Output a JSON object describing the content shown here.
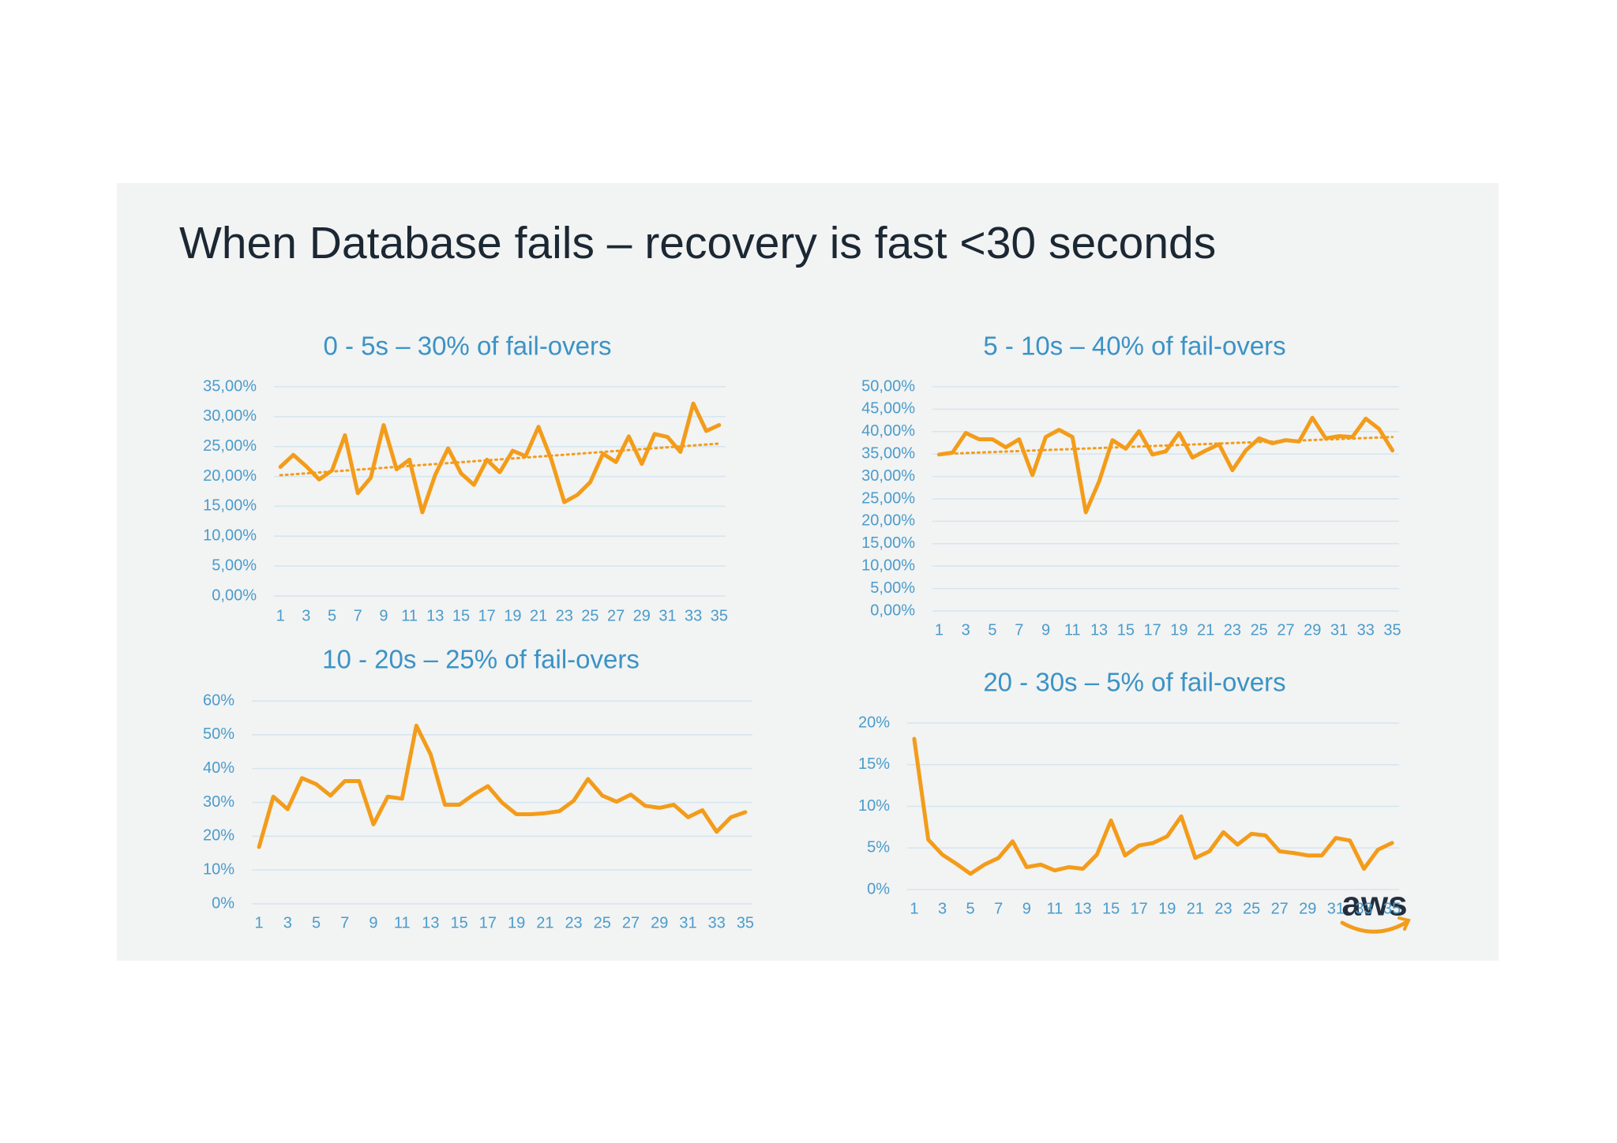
{
  "title": "When Database fails – recovery is fast <30 seconds",
  "logo": "aws",
  "chart_data": [
    {
      "type": "line",
      "title": "0 - 5s – 30% of fail-overs",
      "color": "#f39c1a",
      "grid": true,
      "categories": [
        1,
        null,
        3,
        null,
        5,
        null,
        7,
        null,
        9,
        null,
        11,
        null,
        13,
        null,
        15,
        null,
        17,
        null,
        19,
        null,
        21,
        null,
        23,
        null,
        25,
        null,
        27,
        null,
        29,
        null,
        31,
        null,
        33,
        null,
        35
      ],
      "values": [
        21.6,
        23.6,
        21.7,
        19.5,
        21,
        26.9,
        17.2,
        19.8,
        28.6,
        21.2,
        22.8,
        14,
        20.3,
        24.7,
        20.5,
        18.6,
        22.8,
        20.7,
        24.3,
        23.4,
        28.3,
        22.8,
        15.7,
        16.9,
        19,
        23.8,
        22.4,
        26.7,
        22.1,
        27.1,
        26.6,
        24.1,
        32.2,
        27.6,
        28.6
      ],
      "trend": {
        "style": "dotted",
        "values": [
          20.2,
          25.5
        ]
      },
      "ylim": [
        0,
        35
      ],
      "yticks": [
        {
          "value": 0,
          "label": "0,00%"
        },
        {
          "value": 5,
          "label": "5,00%"
        },
        {
          "value": 10,
          "label": "10,00%"
        },
        {
          "value": 15,
          "label": "15,00%"
        },
        {
          "value": 20,
          "label": "20,00%"
        },
        {
          "value": 25,
          "label": "25,00%"
        },
        {
          "value": 30,
          "label": "30,00%"
        },
        {
          "value": 35,
          "label": "35,00%"
        }
      ]
    },
    {
      "type": "line",
      "title": "5 - 10s – 40% of fail-overs",
      "color": "#f39c1a",
      "grid": true,
      "categories": [
        1,
        null,
        3,
        null,
        5,
        null,
        7,
        null,
        9,
        null,
        11,
        null,
        13,
        null,
        15,
        null,
        17,
        null,
        19,
        null,
        21,
        null,
        23,
        null,
        25,
        null,
        27,
        null,
        29,
        null,
        31,
        null,
        33,
        null,
        35
      ],
      "values": [
        34.9,
        35.3,
        39.7,
        38.3,
        38.3,
        36.5,
        38.3,
        30.3,
        38.8,
        40.4,
        38.8,
        22,
        28.9,
        38.1,
        36.2,
        40.1,
        34.9,
        35.6,
        39.7,
        34.2,
        35.8,
        37.2,
        31.4,
        35.8,
        38.5,
        37.4,
        38.1,
        37.8,
        43.1,
        38.5,
        39,
        38.8,
        42.9,
        40.6,
        35.8
      ],
      "trend": {
        "style": "dotted",
        "values": [
          35,
          38.8
        ]
      },
      "ylim": [
        0,
        50
      ],
      "yticks": [
        {
          "value": 0,
          "label": "0,00%"
        },
        {
          "value": 5,
          "label": "5,00%"
        },
        {
          "value": 10,
          "label": "10,00%"
        },
        {
          "value": 15,
          "label": "15,00%"
        },
        {
          "value": 20,
          "label": "20,00%"
        },
        {
          "value": 25,
          "label": "25,00%"
        },
        {
          "value": 30,
          "label": "30,00%"
        },
        {
          "value": 35,
          "label": "35,00%"
        },
        {
          "value": 40,
          "label": "40,00%"
        },
        {
          "value": 45,
          "label": "45,00%"
        },
        {
          "value": 50,
          "label": "50,00%"
        }
      ]
    },
    {
      "type": "line",
      "title": "10 - 20s – 25% of fail-overs",
      "color": "#f39c1a",
      "grid": true,
      "categories": [
        1,
        null,
        3,
        null,
        5,
        null,
        7,
        null,
        9,
        null,
        11,
        null,
        13,
        null,
        15,
        null,
        17,
        null,
        19,
        null,
        21,
        null,
        23,
        null,
        25,
        null,
        27,
        null,
        29,
        null,
        31,
        null,
        33,
        null,
        35
      ],
      "values": [
        16.8,
        31.7,
        28,
        37.2,
        35.4,
        32,
        36.3,
        36.3,
        23.5,
        31.7,
        31.1,
        52.7,
        44.2,
        29.3,
        29.3,
        32.3,
        34.8,
        29.9,
        26.5,
        26.5,
        26.8,
        27.4,
        30.5,
        36.9,
        32,
        30.2,
        32.3,
        29,
        28.4,
        29.3,
        25.6,
        27.7,
        21.3,
        25.6,
        27.1
      ],
      "ylim": [
        0,
        60
      ],
      "yticks": [
        {
          "value": 0,
          "label": "0%"
        },
        {
          "value": 10,
          "label": "10%"
        },
        {
          "value": 20,
          "label": "20%"
        },
        {
          "value": 30,
          "label": "30%"
        },
        {
          "value": 40,
          "label": "40%"
        },
        {
          "value": 50,
          "label": "50%"
        },
        {
          "value": 60,
          "label": "60%"
        }
      ]
    },
    {
      "type": "line",
      "title": "20 - 30s – 5% of fail-overs",
      "color": "#f39c1a",
      "grid": true,
      "categories": [
        1,
        null,
        3,
        null,
        5,
        null,
        7,
        null,
        9,
        null,
        11,
        null,
        13,
        null,
        15,
        null,
        17,
        null,
        19,
        null,
        21,
        null,
        23,
        null,
        25,
        null,
        27,
        null,
        29,
        null,
        31,
        null,
        33,
        null,
        35
      ],
      "values": [
        18.1,
        6,
        4.2,
        3.1,
        1.9,
        3,
        3.8,
        5.8,
        2.7,
        3,
        2.3,
        2.7,
        2.5,
        4.2,
        8.3,
        4.1,
        5.3,
        5.6,
        6.4,
        8.8,
        3.8,
        4.6,
        6.9,
        5.4,
        6.7,
        6.5,
        4.6,
        4.4,
        4.1,
        4.1,
        6.2,
        5.9,
        2.5,
        4.8,
        5.6
      ],
      "ylim": [
        0,
        20
      ],
      "yticks": [
        {
          "value": 0,
          "label": "0%"
        },
        {
          "value": 5,
          "label": "5%"
        },
        {
          "value": 10,
          "label": "10%"
        },
        {
          "value": 15,
          "label": "15%"
        },
        {
          "value": 20,
          "label": "20%"
        }
      ]
    }
  ]
}
